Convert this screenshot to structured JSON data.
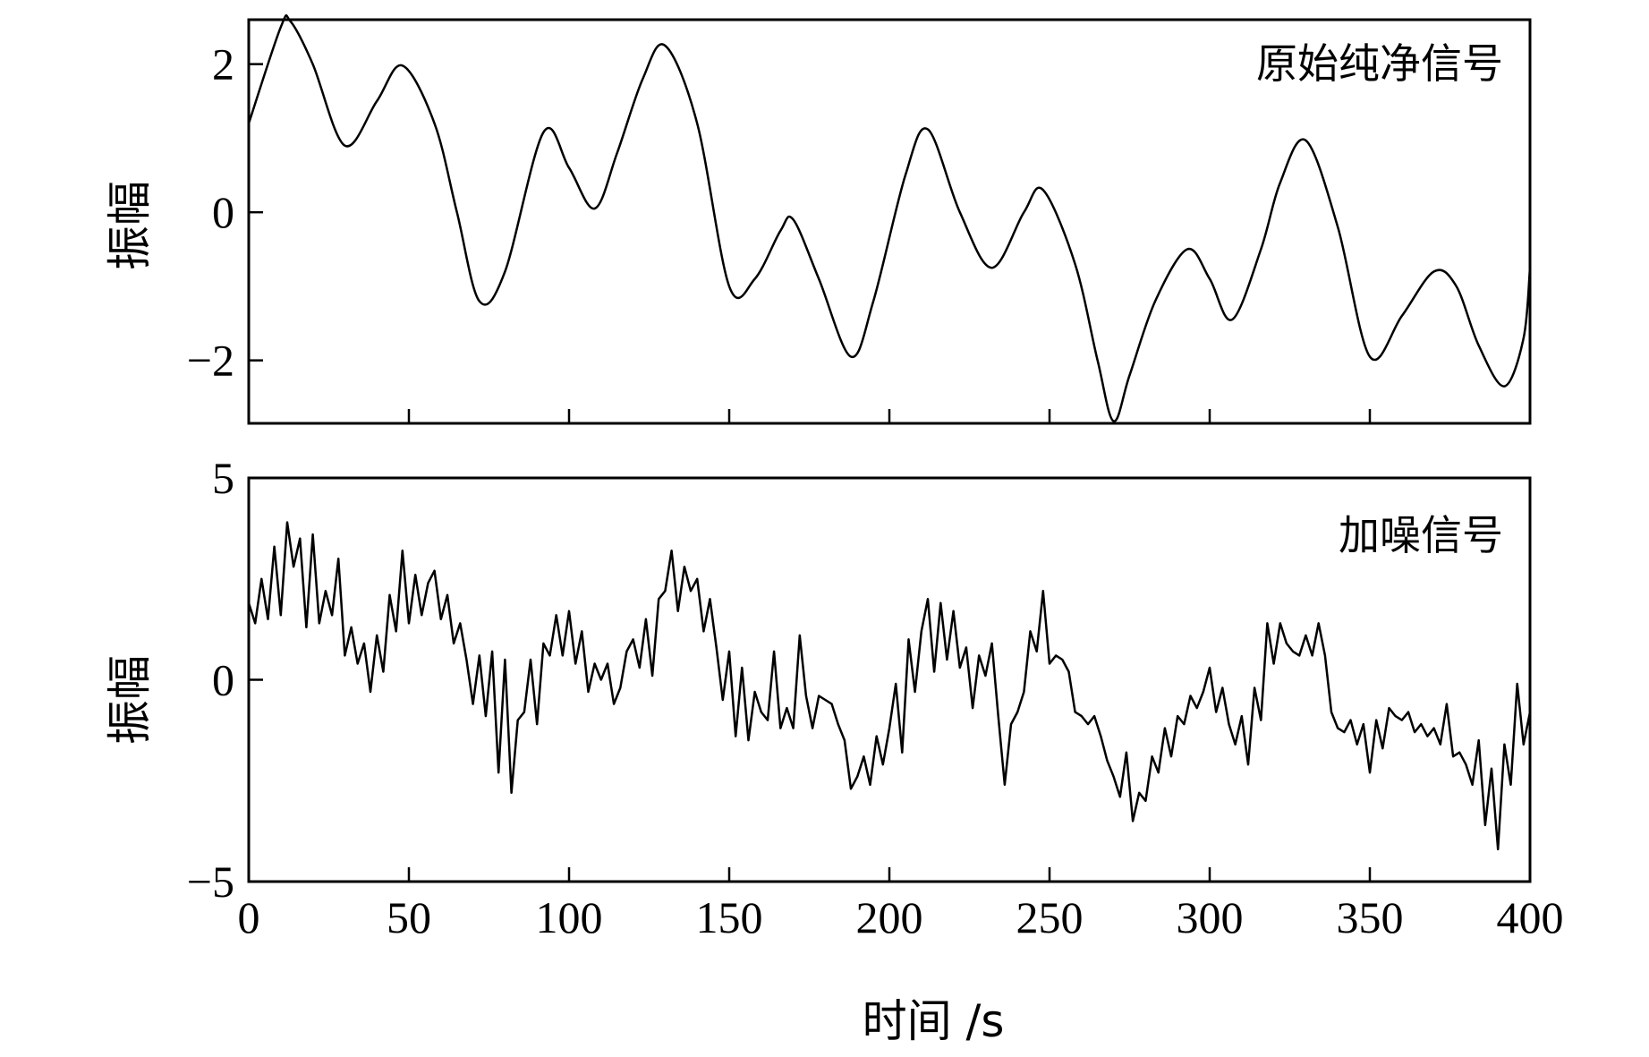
{
  "chart_data": [
    {
      "type": "line",
      "legend": "原始纯净信号",
      "ylabel": "振幅",
      "xlim": [
        0,
        400
      ],
      "ylim": [
        -2.85,
        2.6
      ],
      "yticks": [
        2,
        0,
        -2
      ],
      "ytick_labels": [
        "2",
        "0",
        "−2"
      ],
      "xticks": [
        50,
        100,
        150,
        200,
        250,
        300,
        350
      ],
      "series": [
        {
          "x": [
            0,
            10,
            13,
            20,
            30,
            40,
            48,
            58,
            65,
            72,
            80,
            92,
            100,
            108,
            115,
            123,
            130,
            140,
            150,
            158,
            166,
            170,
            178,
            188,
            195,
            205,
            212,
            222,
            232,
            242,
            248,
            258,
            265,
            270,
            275,
            283,
            293,
            300,
            307,
            316,
            322,
            330,
            340,
            350,
            360,
            370,
            377,
            384,
            392,
            398,
            400
          ],
          "y": [
            1.2,
            2.5,
            2.58,
            2.0,
            0.9,
            1.5,
            1.98,
            1.2,
            0.0,
            -1.2,
            -0.8,
            1.08,
            0.6,
            0.05,
            0.8,
            1.8,
            2.25,
            1.2,
            -1.0,
            -0.9,
            -0.25,
            -0.1,
            -0.9,
            -1.95,
            -1.2,
            0.5,
            1.12,
            0.0,
            -0.75,
            0.0,
            0.3,
            -0.7,
            -2.0,
            -2.82,
            -2.2,
            -1.2,
            -0.5,
            -0.9,
            -1.45,
            -0.5,
            0.4,
            0.97,
            -0.2,
            -1.95,
            -1.4,
            -0.8,
            -1.0,
            -1.8,
            -2.35,
            -1.7,
            -0.75
          ]
        }
      ]
    },
    {
      "type": "line",
      "legend": "加噪信号",
      "ylabel": "振幅",
      "xlabel": "时间 /s",
      "xlim": [
        0,
        400
      ],
      "ylim": [
        -5,
        5
      ],
      "yticks": [
        5,
        0,
        -5
      ],
      "ytick_labels": [
        "5",
        "0",
        "−5"
      ],
      "xticks": [
        0,
        50,
        100,
        150,
        200,
        250,
        300,
        350,
        400
      ],
      "xtick_labels": [
        "0",
        "50",
        "100",
        "150",
        "200",
        "250",
        "300",
        "350",
        "400"
      ],
      "series": [
        {
          "x": [
            0,
            2,
            4,
            6,
            8,
            10,
            12,
            14,
            16,
            18,
            20,
            22,
            24,
            26,
            28,
            30,
            32,
            34,
            36,
            38,
            40,
            42,
            44,
            46,
            48,
            50,
            52,
            54,
            56,
            58,
            60,
            62,
            64,
            66,
            68,
            70,
            72,
            74,
            76,
            78,
            80,
            82,
            84,
            86,
            88,
            90,
            92,
            94,
            96,
            98,
            100,
            102,
            104,
            106,
            108,
            110,
            112,
            114,
            116,
            118,
            120,
            122,
            124,
            126,
            128,
            130,
            132,
            134,
            136,
            138,
            140,
            142,
            144,
            146,
            148,
            150,
            152,
            154,
            156,
            158,
            160,
            162,
            164,
            166,
            168,
            170,
            172,
            174,
            176,
            178,
            180,
            182,
            184,
            186,
            188,
            190,
            192,
            194,
            196,
            198,
            200,
            202,
            204,
            206,
            208,
            210,
            212,
            214,
            216,
            218,
            220,
            222,
            224,
            226,
            228,
            230,
            232,
            234,
            236,
            238,
            240,
            242,
            244,
            246,
            248,
            250,
            252,
            254,
            256,
            258,
            260,
            262,
            264,
            266,
            268,
            270,
            272,
            274,
            276,
            278,
            280,
            282,
            284,
            286,
            288,
            290,
            292,
            294,
            296,
            298,
            300,
            302,
            304,
            306,
            308,
            310,
            312,
            314,
            316,
            318,
            320,
            322,
            324,
            326,
            328,
            330,
            332,
            334,
            336,
            338,
            340,
            342,
            344,
            346,
            348,
            350,
            352,
            354,
            356,
            358,
            360,
            362,
            364,
            366,
            368,
            370,
            372,
            374,
            376,
            378,
            380,
            382,
            384,
            386,
            388,
            390,
            392,
            394,
            396,
            398,
            400
          ],
          "y": [
            1.9,
            1.4,
            2.5,
            1.5,
            3.3,
            1.6,
            3.9,
            2.8,
            3.5,
            1.3,
            3.6,
            1.4,
            2.2,
            1.6,
            3.0,
            0.6,
            1.3,
            0.4,
            0.9,
            -0.3,
            1.1,
            0.2,
            2.1,
            1.2,
            3.2,
            1.4,
            2.6,
            1.6,
            2.4,
            2.7,
            1.5,
            2.1,
            0.9,
            1.4,
            0.5,
            -0.6,
            0.6,
            -0.9,
            0.7,
            -2.3,
            0.5,
            -2.8,
            -1.0,
            -0.8,
            0.5,
            -1.1,
            0.9,
            0.6,
            1.6,
            0.6,
            1.7,
            0.4,
            1.2,
            -0.3,
            0.4,
            0.0,
            0.4,
            -0.6,
            -0.2,
            0.7,
            1.0,
            0.3,
            1.5,
            0.1,
            2.0,
            2.2,
            3.2,
            1.7,
            2.8,
            2.2,
            2.5,
            1.2,
            2.0,
            0.8,
            -0.5,
            0.7,
            -1.4,
            0.3,
            -1.5,
            -0.3,
            -0.8,
            -1.0,
            0.7,
            -1.2,
            -0.7,
            -1.2,
            1.1,
            -0.4,
            -1.2,
            -0.4,
            -0.5,
            -0.6,
            -1.1,
            -1.5,
            -2.7,
            -2.4,
            -1.9,
            -2.6,
            -1.4,
            -2.1,
            -1.2,
            -0.1,
            -1.8,
            1.0,
            -0.3,
            1.2,
            2.0,
            0.2,
            1.9,
            0.5,
            1.7,
            0.3,
            0.8,
            -0.7,
            0.6,
            0.1,
            0.9,
            -0.9,
            -2.6,
            -1.1,
            -0.8,
            -0.3,
            1.2,
            0.7,
            2.2,
            0.4,
            0.6,
            0.5,
            0.2,
            -0.8,
            -0.9,
            -1.1,
            -0.9,
            -1.4,
            -2.0,
            -2.4,
            -2.9,
            -1.8,
            -3.5,
            -2.8,
            -3.0,
            -1.9,
            -2.3,
            -1.2,
            -1.9,
            -0.9,
            -1.1,
            -0.4,
            -0.7,
            -0.3,
            0.3,
            -0.8,
            -0.2,
            -1.1,
            -1.6,
            -0.9,
            -2.1,
            -0.2,
            -1.0,
            1.4,
            0.4,
            1.4,
            0.9,
            0.7,
            0.6,
            1.1,
            0.6,
            1.4,
            0.6,
            -0.8,
            -1.2,
            -1.3,
            -1.0,
            -1.6,
            -1.1,
            -2.3,
            -1.0,
            -1.7,
            -0.7,
            -0.9,
            -1.0,
            -0.8,
            -1.3,
            -1.1,
            -1.4,
            -1.2,
            -1.6,
            -0.6,
            -1.9,
            -1.8,
            -2.1,
            -2.6,
            -1.5,
            -3.6,
            -2.2,
            -4.2,
            -1.6,
            -2.6,
            -0.1,
            -1.6,
            -0.8
          ]
        }
      ]
    }
  ]
}
